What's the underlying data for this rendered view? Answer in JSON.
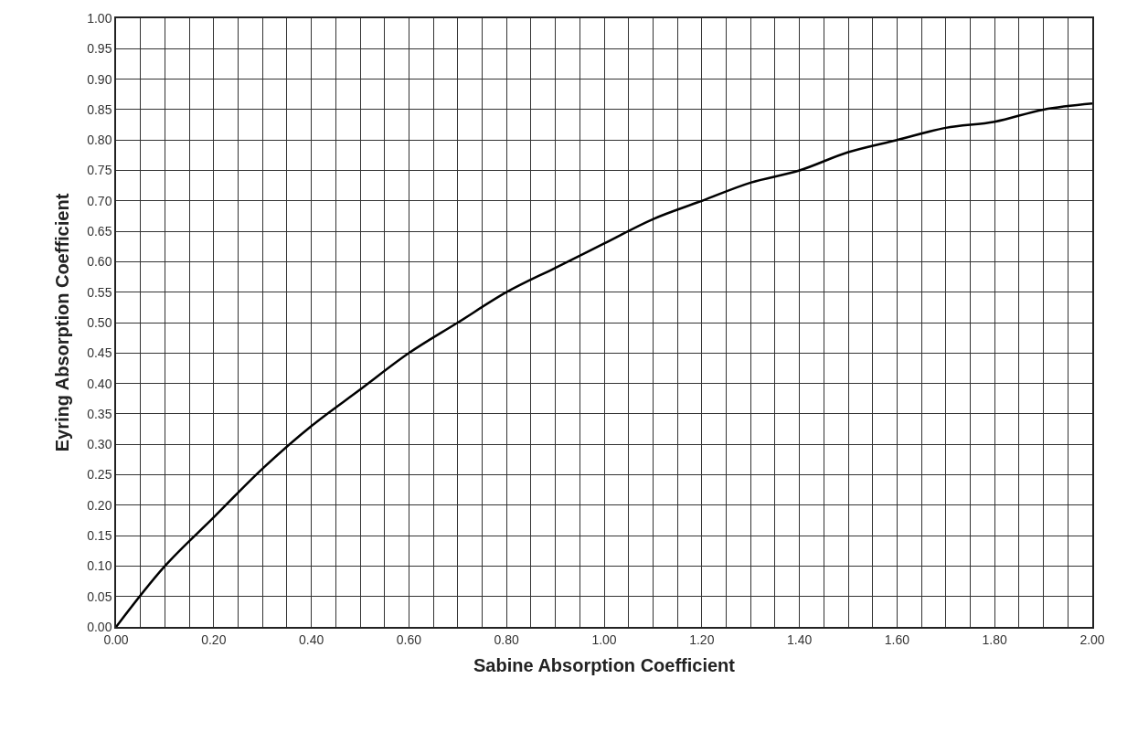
{
  "chart_data": {
    "type": "line",
    "xlabel": "Sabine Absorption Coefficient",
    "ylabel": "Eyring Absorption Coefficient",
    "x": [
      0,
      0.1,
      0.2,
      0.3,
      0.4,
      0.5,
      0.6,
      0.7,
      0.8,
      0.9,
      1.0,
      1.1,
      1.2,
      1.3,
      1.4,
      1.5,
      1.6,
      1.7,
      1.8,
      1.9,
      2.0
    ],
    "series": [
      {
        "color": "#000000",
        "values": [
          0,
          0.1,
          0.18,
          0.26,
          0.33,
          0.39,
          0.45,
          0.5,
          0.55,
          0.59,
          0.63,
          0.67,
          0.7,
          0.73,
          0.75,
          0.78,
          0.8,
          0.82,
          0.83,
          0.85,
          0.86
        ]
      }
    ],
    "xlim": [
      0,
      2
    ],
    "xticks": [
      {
        "value": 0,
        "label": "0.00"
      },
      {
        "value": 0.05,
        "label": null
      },
      {
        "value": 0.1,
        "label": null
      },
      {
        "value": 0.15,
        "label": null
      },
      {
        "value": 0.2,
        "label": "0.20"
      },
      {
        "value": 0.25,
        "label": null
      },
      {
        "value": 0.3,
        "label": null
      },
      {
        "value": 0.35,
        "label": null
      },
      {
        "value": 0.4,
        "label": "0.40"
      },
      {
        "value": 0.45,
        "label": null
      },
      {
        "value": 0.5,
        "label": null
      },
      {
        "value": 0.55,
        "label": null
      },
      {
        "value": 0.6,
        "label": "0.60"
      },
      {
        "value": 0.65,
        "label": null
      },
      {
        "value": 0.7,
        "label": null
      },
      {
        "value": 0.75,
        "label": null
      },
      {
        "value": 0.8,
        "label": "0.80"
      },
      {
        "value": 0.85,
        "label": null
      },
      {
        "value": 0.9,
        "label": null
      },
      {
        "value": 0.95,
        "label": null
      },
      {
        "value": 1.0,
        "label": "1.00"
      },
      {
        "value": 1.05,
        "label": null
      },
      {
        "value": 1.1,
        "label": null
      },
      {
        "value": 1.15,
        "label": null
      },
      {
        "value": 1.2,
        "label": "1.20"
      },
      {
        "value": 1.25,
        "label": null
      },
      {
        "value": 1.3,
        "label": null
      },
      {
        "value": 1.35,
        "label": null
      },
      {
        "value": 1.4,
        "label": "1.40"
      },
      {
        "value": 1.45,
        "label": null
      },
      {
        "value": 1.5,
        "label": null
      },
      {
        "value": 1.55,
        "label": null
      },
      {
        "value": 1.6,
        "label": "1.60"
      },
      {
        "value": 1.65,
        "label": null
      },
      {
        "value": 1.7,
        "label": null
      },
      {
        "value": 1.75,
        "label": null
      },
      {
        "value": 1.8,
        "label": "1.80"
      },
      {
        "value": 1.85,
        "label": null
      },
      {
        "value": 1.9,
        "label": null
      },
      {
        "value": 1.95,
        "label": null
      },
      {
        "value": 2.0,
        "label": "2.00"
      }
    ],
    "ylim": [
      0,
      1
    ],
    "yticks": [
      {
        "value": 0,
        "label": "0.00"
      },
      {
        "value": 0.05,
        "label": "0.05"
      },
      {
        "value": 0.1,
        "label": "0.10"
      },
      {
        "value": 0.15,
        "label": "0.15"
      },
      {
        "value": 0.2,
        "label": "0.20"
      },
      {
        "value": 0.25,
        "label": "0.25"
      },
      {
        "value": 0.3,
        "label": "0.30"
      },
      {
        "value": 0.35,
        "label": "0.35"
      },
      {
        "value": 0.4,
        "label": "0.40"
      },
      {
        "value": 0.45,
        "label": "0.45"
      },
      {
        "value": 0.5,
        "label": "0.50"
      },
      {
        "value": 0.55,
        "label": "0.55"
      },
      {
        "value": 0.6,
        "label": "0.60"
      },
      {
        "value": 0.65,
        "label": "0.65"
      },
      {
        "value": 0.7,
        "label": "0.70"
      },
      {
        "value": 0.75,
        "label": "0.75"
      },
      {
        "value": 0.8,
        "label": "0.80"
      },
      {
        "value": 0.85,
        "label": "0.85"
      },
      {
        "value": 0.9,
        "label": "0.90"
      },
      {
        "value": 0.95,
        "label": "0.95"
      },
      {
        "value": 1.0,
        "label": "1.00"
      }
    ],
    "grid": true,
    "marker": "none",
    "line_style": "solid"
  }
}
